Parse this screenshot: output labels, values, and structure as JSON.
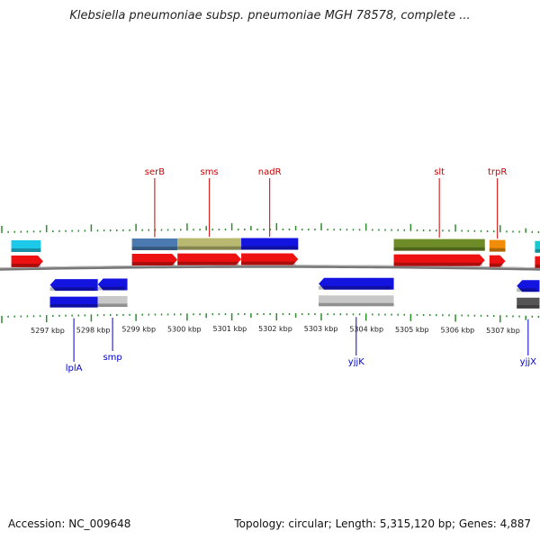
{
  "title": "Klebsiella pneumoniae subsp. pneumoniae MGH 78578, complete ...",
  "footer": {
    "accession": "Accession: NC_009648",
    "summary": "Topology: circular; Length: 5,315,120 bp; Genes: 4,887"
  },
  "axis": {
    "unit": "kbp",
    "ticks": [
      {
        "kbp": 5297,
        "label": "5297 kbp"
      },
      {
        "kbp": 5298,
        "label": "5298 kbp"
      },
      {
        "kbp": 5299,
        "label": "5299 kbp"
      },
      {
        "kbp": 5300,
        "label": "5300 kbp"
      },
      {
        "kbp": 5301,
        "label": "5301 kbp"
      },
      {
        "kbp": 5302,
        "label": "5302 kbp"
      },
      {
        "kbp": 5303,
        "label": "5303 kbp"
      },
      {
        "kbp": 5304,
        "label": "5304 kbp"
      },
      {
        "kbp": 5305,
        "label": "5305 kbp"
      },
      {
        "kbp": 5306,
        "label": "5306 kbp"
      },
      {
        "kbp": 5307,
        "label": "5307 kbp"
      }
    ]
  },
  "genes_forward": [
    {
      "name": "",
      "start": 5296.2,
      "end": 5296.85,
      "color": "#1ec8e8"
    },
    {
      "name": "serB",
      "start": 5298.85,
      "end": 5299.85,
      "color": "#4a7ab0",
      "label": "serB"
    },
    {
      "name": "sms",
      "start": 5299.85,
      "end": 5301.25,
      "color": "#b8b870",
      "label": "sms"
    },
    {
      "name": "nadR",
      "start": 5301.25,
      "end": 5302.5,
      "color": "#1414e0",
      "label": "nadR"
    },
    {
      "name": "slt",
      "start": 5304.6,
      "end": 5306.6,
      "color": "#6e8c28",
      "label": "slt"
    },
    {
      "name": "trpR",
      "start": 5306.7,
      "end": 5307.05,
      "color": "#f08c0a",
      "label": "trpR"
    },
    {
      "name": "",
      "start": 5307.7,
      "end": 5308.5,
      "color": "#18c8d2"
    }
  ],
  "cds_forward": [
    {
      "start": 5296.2,
      "end": 5296.9
    },
    {
      "start": 5298.85,
      "end": 5299.85
    },
    {
      "start": 5299.85,
      "end": 5301.25
    },
    {
      "start": 5301.25,
      "end": 5302.5
    },
    {
      "start": 5304.6,
      "end": 5306.6
    },
    {
      "start": 5306.7,
      "end": 5307.05
    },
    {
      "start": 5307.7,
      "end": 5308.5
    }
  ],
  "genes_reverse": [
    {
      "name": "lplA",
      "start": 5297.05,
      "end": 5298.1,
      "color": "#1414e0",
      "label": "lplA"
    },
    {
      "name": "smp",
      "start": 5298.1,
      "end": 5298.75,
      "color": "#1414e0",
      "label": "smp"
    },
    {
      "name": "yjjK",
      "start": 5302.95,
      "end": 5304.6,
      "color": "#1414e0",
      "label": "yjjK"
    },
    {
      "name": "yjjX",
      "start": 5307.3,
      "end": 5307.8,
      "color": "#1414e0",
      "label": "yjjX"
    }
  ],
  "cds_reverse": [
    {
      "start": 5297.05,
      "end": 5298.1,
      "color": "#1414e0"
    },
    {
      "start": 5298.1,
      "end": 5298.75,
      "color": "#c8c8c8"
    },
    {
      "start": 5302.95,
      "end": 5304.6,
      "color": "#c8c8c8"
    },
    {
      "start": 5307.3,
      "end": 5307.8,
      "color": "#555555"
    }
  ]
}
